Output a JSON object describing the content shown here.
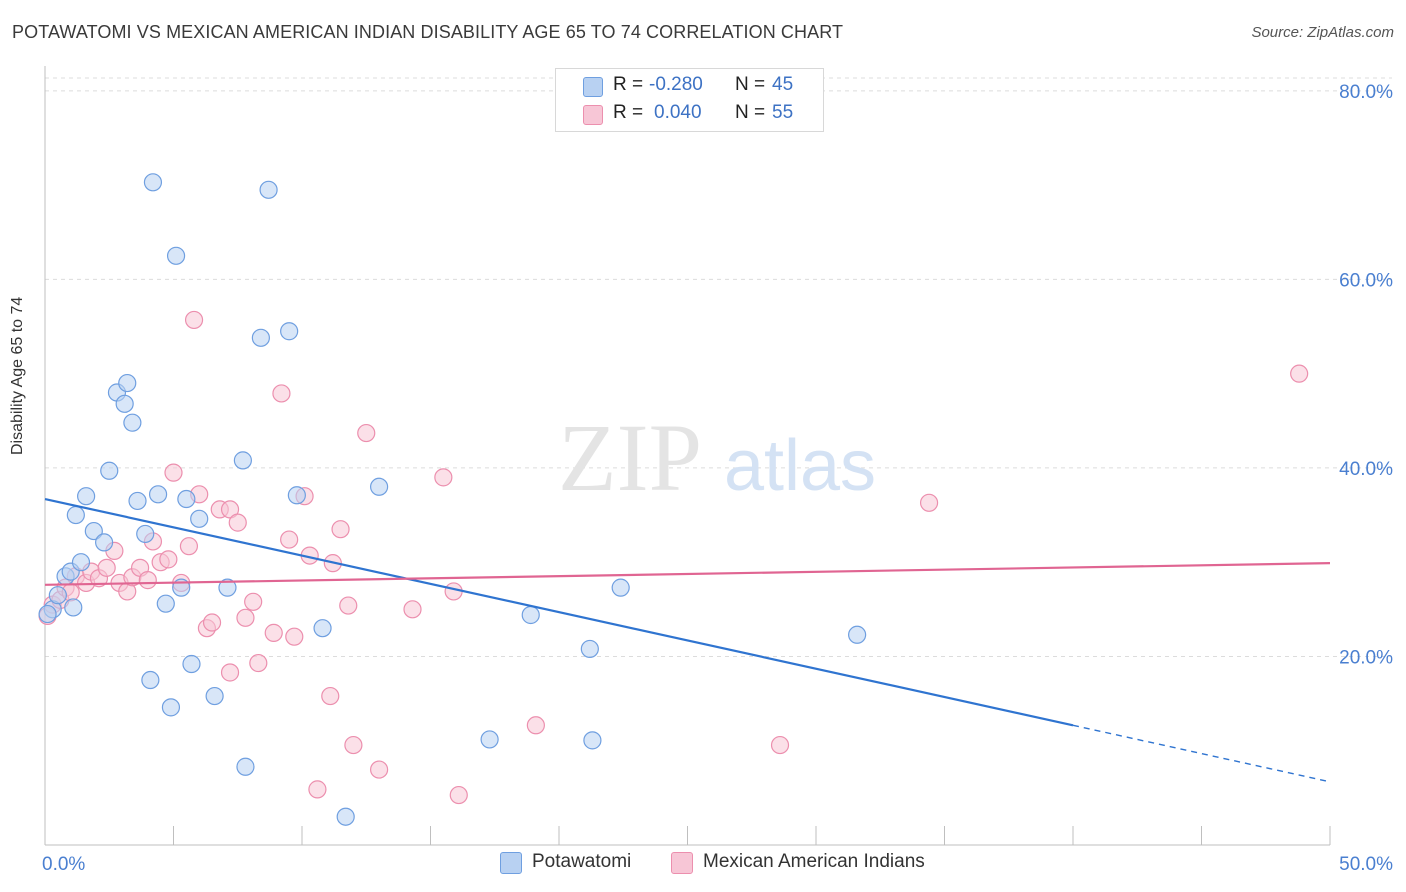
{
  "title": "POTAWATOMI VS MEXICAN AMERICAN INDIAN DISABILITY AGE 65 TO 74 CORRELATION CHART",
  "source": "Source: ZipAtlas.com",
  "watermark": {
    "zip": "ZIP",
    "atlas": "atlas"
  },
  "legend": {
    "r_label": "R =",
    "n_label": "N =",
    "rows": [
      {
        "r": "-0.280",
        "n": "45"
      },
      {
        "r": "0.040",
        "n": "55"
      }
    ]
  },
  "colors": {
    "blue_fill": "#b8d1f2",
    "blue_stroke": "#6f9fe0",
    "blue_line": "#2f74d0",
    "pink_fill": "#f7c6d6",
    "pink_stroke": "#ec8fae",
    "pink_line": "#e06592",
    "axis_text": "#4a7fd0",
    "grid": "#dcdcdc"
  },
  "chart_data": {
    "type": "scatter",
    "title": "POTAWATOMI VS MEXICAN AMERICAN INDIAN DISABILITY AGE 65 TO 74 CORRELATION CHART",
    "xlabel": "",
    "ylabel": "Disability Age 65 to 74",
    "xlim": [
      0,
      50
    ],
    "ylim": [
      0,
      82
    ],
    "x_tick_labels": [
      "0.0%",
      "50.0%"
    ],
    "y_tick_labels": [
      "20.0%",
      "40.0%",
      "60.0%",
      "80.0%"
    ],
    "y_ticks": [
      20,
      40,
      60,
      80
    ],
    "grid": true,
    "legend_position": "top-center",
    "series": [
      {
        "name": "Potawatomi",
        "color": "blue",
        "points": [
          [
            0.3,
            25.0
          ],
          [
            0.5,
            26.5
          ],
          [
            0.8,
            28.5
          ],
          [
            1.0,
            29.0
          ],
          [
            1.1,
            25.2
          ],
          [
            1.2,
            35.0
          ],
          [
            1.4,
            30.0
          ],
          [
            1.6,
            37.0
          ],
          [
            1.9,
            33.3
          ],
          [
            2.3,
            32.1
          ],
          [
            2.5,
            39.7
          ],
          [
            2.8,
            48.0
          ],
          [
            3.1,
            46.8
          ],
          [
            3.2,
            49.0
          ],
          [
            3.4,
            44.8
          ],
          [
            3.6,
            36.5
          ],
          [
            3.9,
            33.0
          ],
          [
            4.1,
            17.5
          ],
          [
            4.2,
            70.3
          ],
          [
            4.4,
            37.2
          ],
          [
            4.7,
            25.6
          ],
          [
            4.9,
            14.6
          ],
          [
            5.1,
            62.5
          ],
          [
            5.3,
            27.3
          ],
          [
            5.5,
            36.7
          ],
          [
            5.7,
            19.2
          ],
          [
            6.0,
            34.6
          ],
          [
            6.6,
            15.8
          ],
          [
            7.1,
            27.3
          ],
          [
            7.7,
            40.8
          ],
          [
            7.8,
            8.3
          ],
          [
            8.4,
            53.8
          ],
          [
            8.7,
            69.5
          ],
          [
            9.5,
            54.5
          ],
          [
            9.8,
            37.1
          ],
          [
            10.8,
            23.0
          ],
          [
            11.7,
            3.0
          ],
          [
            13.0,
            38.0
          ],
          [
            17.3,
            11.2
          ],
          [
            18.9,
            24.4
          ],
          [
            21.2,
            20.8
          ],
          [
            21.3,
            11.1
          ],
          [
            22.4,
            27.3
          ],
          [
            31.6,
            22.3
          ],
          [
            0.1,
            24.5
          ]
        ]
      },
      {
        "name": "Mexican American Indians",
        "color": "pink",
        "points": [
          [
            0.1,
            24.3
          ],
          [
            0.3,
            25.5
          ],
          [
            0.6,
            26.0
          ],
          [
            0.8,
            27.3
          ],
          [
            1.0,
            26.8
          ],
          [
            1.2,
            28.5
          ],
          [
            1.6,
            27.8
          ],
          [
            1.8,
            29.0
          ],
          [
            2.1,
            28.3
          ],
          [
            2.4,
            29.4
          ],
          [
            2.7,
            31.2
          ],
          [
            2.9,
            27.8
          ],
          [
            3.2,
            26.9
          ],
          [
            3.4,
            28.4
          ],
          [
            3.7,
            29.4
          ],
          [
            4.0,
            28.1
          ],
          [
            4.2,
            32.2
          ],
          [
            4.5,
            30.0
          ],
          [
            4.8,
            30.3
          ],
          [
            5.0,
            39.5
          ],
          [
            5.3,
            27.8
          ],
          [
            5.6,
            31.7
          ],
          [
            5.8,
            55.7
          ],
          [
            6.0,
            37.2
          ],
          [
            6.3,
            23.0
          ],
          [
            6.5,
            23.6
          ],
          [
            6.8,
            35.6
          ],
          [
            7.2,
            18.3
          ],
          [
            7.2,
            35.6
          ],
          [
            7.5,
            34.2
          ],
          [
            7.8,
            24.1
          ],
          [
            8.1,
            25.8
          ],
          [
            8.3,
            19.3
          ],
          [
            8.9,
            22.5
          ],
          [
            9.2,
            47.9
          ],
          [
            9.5,
            32.4
          ],
          [
            9.7,
            22.1
          ],
          [
            10.1,
            37.0
          ],
          [
            10.3,
            30.7
          ],
          [
            11.2,
            29.9
          ],
          [
            11.1,
            15.8
          ],
          [
            11.5,
            33.5
          ],
          [
            11.8,
            25.4
          ],
          [
            12.0,
            10.6
          ],
          [
            12.5,
            43.7
          ],
          [
            13.0,
            8.0
          ],
          [
            14.3,
            25.0
          ],
          [
            15.5,
            39.0
          ],
          [
            15.9,
            26.9
          ],
          [
            16.1,
            5.3
          ],
          [
            19.1,
            12.7
          ],
          [
            28.6,
            10.6
          ],
          [
            34.4,
            36.3
          ],
          [
            48.8,
            50.0
          ],
          [
            10.6,
            5.9
          ]
        ]
      }
    ],
    "trendlines": [
      {
        "series": "Potawatomi",
        "from": [
          0,
          36.7
        ],
        "to_solid": [
          40,
          12.7
        ],
        "to_dashed": [
          50,
          6.7
        ]
      },
      {
        "series": "Mexican American Indians",
        "from": [
          0,
          27.6
        ],
        "to": [
          50,
          29.9
        ]
      }
    ]
  }
}
